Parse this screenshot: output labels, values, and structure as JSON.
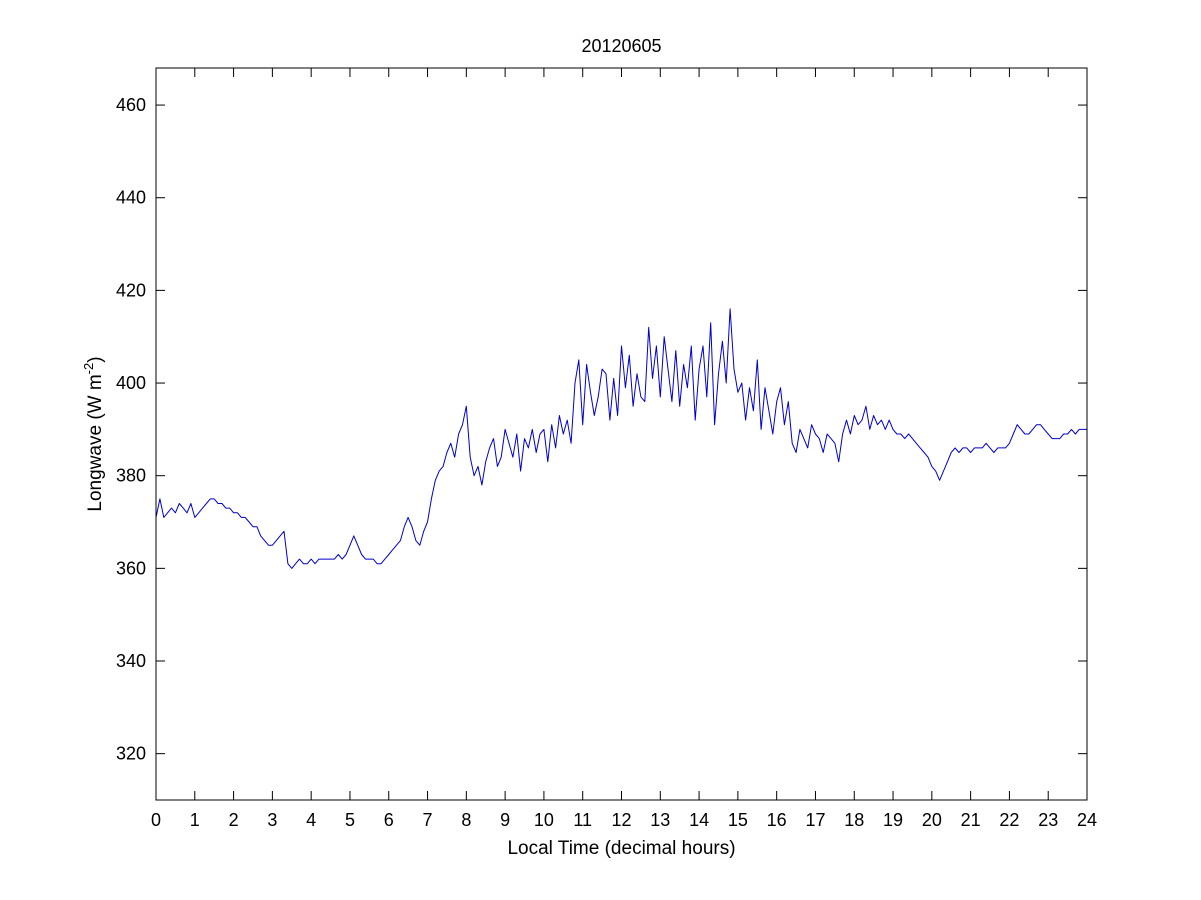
{
  "chart_data": {
    "type": "line",
    "title": "20120605",
    "xlabel": "Local Time (decimal hours)",
    "ylabel": "Longwave (W m",
    "ylabel_exponent": "-2",
    "ylabel_close": ")",
    "xlim": [
      0,
      24
    ],
    "ylim": [
      310,
      468
    ],
    "xticks": [
      0,
      1,
      2,
      3,
      4,
      5,
      6,
      7,
      8,
      9,
      10,
      11,
      12,
      13,
      14,
      15,
      16,
      17,
      18,
      19,
      20,
      21,
      22,
      23,
      24
    ],
    "yticks": [
      320,
      340,
      360,
      380,
      400,
      420,
      440,
      460
    ],
    "grid": false,
    "line_color": "#0000cc",
    "series": [
      {
        "x": [
          0,
          0.1,
          0.2,
          0.3,
          0.4,
          0.5,
          0.6,
          0.7,
          0.8,
          0.9,
          1.0,
          1.1,
          1.2,
          1.3,
          1.4,
          1.5,
          1.6,
          1.7,
          1.8,
          1.9,
          2.0,
          2.1,
          2.2,
          2.3,
          2.4,
          2.5,
          2.6,
          2.7,
          2.8,
          2.9,
          3.0,
          3.1,
          3.2,
          3.3,
          3.4,
          3.5,
          3.6,
          3.7,
          3.8,
          3.9,
          4.0,
          4.1,
          4.2,
          4.3,
          4.4,
          4.5,
          4.6,
          4.7,
          4.8,
          4.9,
          5.0,
          5.1,
          5.2,
          5.3,
          5.4,
          5.5,
          5.6,
          5.7,
          5.8,
          5.9,
          6.0,
          6.1,
          6.2,
          6.3,
          6.4,
          6.5,
          6.6,
          6.7,
          6.8,
          6.9,
          7.0,
          7.1,
          7.2,
          7.3,
          7.4,
          7.5,
          7.6,
          7.7,
          7.8,
          7.9,
          8.0,
          8.1,
          8.2,
          8.3,
          8.4,
          8.5,
          8.6,
          8.7,
          8.8,
          8.9,
          9.0,
          9.1,
          9.2,
          9.3,
          9.4,
          9.5,
          9.6,
          9.7,
          9.8,
          9.9,
          10.0,
          10.1,
          10.2,
          10.3,
          10.4,
          10.5,
          10.6,
          10.7,
          10.8,
          10.9,
          11.0,
          11.1,
          11.2,
          11.3,
          11.4,
          11.5,
          11.6,
          11.7,
          11.8,
          11.9,
          12.0,
          12.1,
          12.2,
          12.3,
          12.4,
          12.5,
          12.6,
          12.7,
          12.8,
          12.9,
          13.0,
          13.1,
          13.2,
          13.3,
          13.4,
          13.5,
          13.6,
          13.7,
          13.8,
          13.9,
          14.0,
          14.1,
          14.2,
          14.3,
          14.4,
          14.5,
          14.6,
          14.7,
          14.8,
          14.9,
          15.0,
          15.1,
          15.2,
          15.3,
          15.4,
          15.5,
          15.6,
          15.7,
          15.8,
          15.9,
          16.0,
          16.1,
          16.2,
          16.3,
          16.4,
          16.5,
          16.6,
          16.7,
          16.8,
          16.9,
          17.0,
          17.1,
          17.2,
          17.3,
          17.4,
          17.5,
          17.6,
          17.7,
          17.8,
          17.9,
          18.0,
          18.1,
          18.2,
          18.3,
          18.4,
          18.5,
          18.6,
          18.7,
          18.8,
          18.9,
          19.0,
          19.1,
          19.2,
          19.3,
          19.4,
          19.5,
          19.6,
          19.7,
          19.8,
          19.9,
          20.0,
          20.1,
          20.2,
          20.3,
          20.4,
          20.5,
          20.6,
          20.7,
          20.8,
          20.9,
          21.0,
          21.1,
          21.2,
          21.3,
          21.4,
          21.5,
          21.6,
          21.7,
          21.8,
          21.9,
          22.0,
          22.1,
          22.2,
          22.3,
          22.4,
          22.5,
          22.6,
          22.7,
          22.8,
          22.9,
          23.0,
          23.1,
          23.2,
          23.3,
          23.4,
          23.5,
          23.6,
          23.7,
          23.8,
          23.9,
          24.0
        ],
        "values": [
          371,
          375,
          371,
          372,
          373,
          372,
          374,
          373,
          372,
          374,
          371,
          372,
          373,
          374,
          375,
          375,
          374,
          374,
          373,
          373,
          372,
          372,
          371,
          371,
          370,
          369,
          369,
          367,
          366,
          365,
          365,
          366,
          367,
          368,
          361,
          360,
          361,
          362,
          361,
          361,
          362,
          361,
          362,
          362,
          362,
          362,
          362,
          363,
          362,
          363,
          365,
          367,
          365,
          363,
          362,
          362,
          362,
          361,
          361,
          362,
          363,
          364,
          365,
          366,
          369,
          371,
          369,
          366,
          365,
          368,
          370,
          375,
          379,
          381,
          382,
          385,
          387,
          384,
          389,
          391,
          395,
          384,
          380,
          382,
          378,
          383,
          386,
          388,
          382,
          384,
          390,
          387,
          384,
          389,
          381,
          388,
          386,
          390,
          385,
          389,
          390,
          383,
          391,
          386,
          393,
          389,
          392,
          387,
          400,
          405,
          391,
          404,
          398,
          393,
          397,
          403,
          402,
          392,
          401,
          393,
          408,
          399,
          406,
          395,
          402,
          397,
          396,
          412,
          401,
          408,
          397,
          410,
          403,
          396,
          407,
          395,
          404,
          399,
          408,
          392,
          403,
          408,
          397,
          413,
          391,
          402,
          409,
          400,
          416,
          403,
          398,
          400,
          392,
          399,
          394,
          405,
          390,
          399,
          394,
          389,
          396,
          399,
          391,
          396,
          387,
          385,
          390,
          388,
          386,
          391,
          389,
          388,
          385,
          389,
          388,
          387,
          383,
          389,
          392,
          389,
          393,
          391,
          392,
          395,
          390,
          393,
          391,
          392,
          390,
          392,
          390,
          389,
          389,
          388,
          389,
          388,
          387,
          386,
          385,
          384,
          382,
          381,
          379,
          381,
          383,
          385,
          386,
          385,
          386,
          386,
          385,
          386,
          386,
          386,
          387,
          386,
          385,
          386,
          386,
          386,
          387,
          389,
          391,
          390,
          389,
          389,
          390,
          391,
          391,
          390,
          389,
          388,
          388,
          388,
          389,
          389,
          390,
          389,
          390,
          390,
          390
        ]
      }
    ]
  }
}
